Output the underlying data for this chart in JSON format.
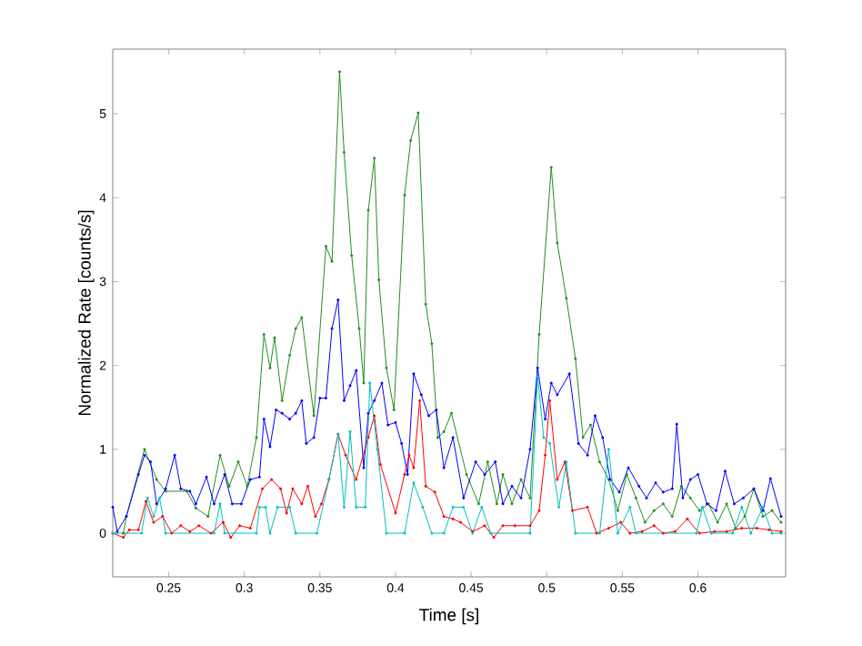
{
  "chart_data": {
    "type": "line",
    "xlabel": "Time [s]",
    "ylabel": "Normalized Rate [counts/s]",
    "xlim": [
      0.213,
      0.658
    ],
    "ylim": [
      -0.52,
      5.77
    ],
    "xticks": [
      0.25,
      0.3,
      0.35,
      0.4,
      0.45,
      0.5,
      0.55,
      0.6
    ],
    "yticks": [
      0,
      1,
      2,
      3,
      4,
      5
    ],
    "grid": false,
    "marker": "circle",
    "line_style": "solid",
    "series": [
      {
        "color": "#1f8f1f",
        "x": [
          0.22,
          0.222,
          0.234,
          0.242,
          0.248,
          0.262,
          0.268,
          0.276,
          0.284,
          0.29,
          0.296,
          0.302,
          0.308,
          0.313,
          0.317,
          0.32,
          0.325,
          0.33,
          0.334,
          0.338,
          0.346,
          0.354,
          0.358,
          0.363,
          0.366,
          0.371,
          0.376,
          0.379,
          0.382,
          0.386,
          0.389,
          0.394,
          0.399,
          0.406,
          0.41,
          0.415,
          0.42,
          0.424,
          0.428,
          0.432,
          0.437,
          0.447,
          0.455,
          0.461,
          0.467,
          0.471,
          0.477,
          0.483,
          0.489,
          0.495,
          0.503,
          0.507,
          0.513,
          0.519,
          0.524,
          0.529,
          0.535,
          0.541,
          0.547,
          0.553,
          0.559,
          0.565,
          0.571,
          0.577,
          0.583,
          0.589,
          0.595,
          0.601,
          0.607,
          0.613,
          0.619,
          0.625,
          0.631,
          0.637,
          0.643,
          0.649,
          0.655
        ],
        "values": [
          0,
          0.2,
          1.0,
          0.64,
          0.5,
          0.5,
          0.3,
          0.2,
          0.93,
          0.56,
          0.85,
          0.56,
          1.14,
          2.37,
          1.97,
          2.33,
          1.58,
          2.12,
          2.44,
          2.57,
          1.4,
          3.42,
          3.24,
          5.5,
          4.54,
          3.31,
          2.44,
          1.79,
          3.85,
          4.47,
          3.02,
          1.97,
          1.47,
          4.03,
          4.68,
          5.01,
          2.73,
          2.26,
          1.14,
          1.21,
          1.43,
          0.7,
          0.35,
          0.85,
          0.35,
          0.7,
          0.35,
          0.64,
          0.42,
          2.37,
          4.36,
          3.46,
          2.8,
          2.08,
          1.14,
          1.29,
          0.85,
          0.64,
          0.27,
          0.7,
          0.42,
          0.13,
          0.27,
          0.35,
          0.2,
          0.56,
          0.42,
          0.27,
          0.35,
          0.13,
          0.35,
          0.06,
          0.2,
          0.53,
          0.2,
          0.27,
          0.13
        ]
      },
      {
        "color": "#0000ff",
        "x": [
          0.213,
          0.216,
          0.222,
          0.23,
          0.234,
          0.238,
          0.242,
          0.248,
          0.254,
          0.258,
          0.264,
          0.268,
          0.275,
          0.28,
          0.287,
          0.292,
          0.298,
          0.304,
          0.31,
          0.313,
          0.317,
          0.321,
          0.325,
          0.33,
          0.334,
          0.338,
          0.341,
          0.346,
          0.35,
          0.354,
          0.358,
          0.362,
          0.366,
          0.37,
          0.374,
          0.379,
          0.382,
          0.386,
          0.391,
          0.395,
          0.4,
          0.404,
          0.408,
          0.412,
          0.417,
          0.422,
          0.427,
          0.432,
          0.438,
          0.445,
          0.453,
          0.459,
          0.466,
          0.471,
          0.477,
          0.483,
          0.489,
          0.494,
          0.499,
          0.503,
          0.507,
          0.515,
          0.521,
          0.527,
          0.532,
          0.537,
          0.542,
          0.548,
          0.554,
          0.561,
          0.566,
          0.572,
          0.577,
          0.583,
          0.586,
          0.59,
          0.595,
          0.6,
          0.606,
          0.612,
          0.618,
          0.624,
          0.63,
          0.637,
          0.643,
          0.648,
          0.655
        ],
        "values": [
          0.31,
          0.02,
          0.2,
          0.7,
          0.93,
          0.85,
          0.35,
          0.53,
          0.93,
          0.53,
          0.5,
          0.35,
          0.67,
          0.35,
          0.7,
          0.35,
          0.35,
          0.64,
          0.67,
          1.36,
          1.03,
          1.47,
          1.43,
          1.36,
          1.43,
          1.58,
          1.07,
          1.14,
          1.61,
          1.61,
          2.44,
          2.78,
          1.58,
          1.76,
          1.94,
          0.78,
          1.43,
          1.58,
          1.79,
          1.29,
          1.32,
          1.07,
          0.7,
          1.9,
          1.65,
          1.4,
          1.47,
          0.78,
          1.14,
          0.42,
          0.85,
          0.7,
          0.85,
          0.35,
          0.56,
          0.42,
          1.0,
          1.97,
          1.36,
          1.79,
          1.65,
          1.9,
          1.07,
          0.93,
          1.4,
          1.14,
          0.64,
          0.49,
          0.78,
          0.56,
          0.42,
          0.6,
          0.49,
          0.53,
          1.3,
          0.42,
          0.64,
          0.7,
          0.35,
          0.27,
          0.74,
          0.35,
          0.42,
          0.53,
          0.27,
          0.65,
          0.2
        ]
      },
      {
        "color": "#ff0000",
        "x": [
          0.213,
          0.22,
          0.224,
          0.23,
          0.235,
          0.24,
          0.246,
          0.252,
          0.258,
          0.264,
          0.27,
          0.278,
          0.286,
          0.291,
          0.297,
          0.304,
          0.312,
          0.318,
          0.324,
          0.328,
          0.332,
          0.338,
          0.342,
          0.347,
          0.351,
          0.356,
          0.362,
          0.367,
          0.374,
          0.382,
          0.386,
          0.39,
          0.4,
          0.406,
          0.409,
          0.412,
          0.416,
          0.42,
          0.426,
          0.432,
          0.438,
          0.443,
          0.451,
          0.459,
          0.465,
          0.471,
          0.479,
          0.489,
          0.495,
          0.499,
          0.502,
          0.507,
          0.512,
          0.517,
          0.527,
          0.533,
          0.541,
          0.549,
          0.555,
          0.563,
          0.571,
          0.577,
          0.585,
          0.593,
          0.601,
          0.611,
          0.619,
          0.629,
          0.639,
          0.647,
          0.655
        ],
        "values": [
          0,
          -0.05,
          0.04,
          0.04,
          0.38,
          0.13,
          0.2,
          0,
          0.09,
          0.02,
          0.09,
          0,
          0.13,
          -0.05,
          0.09,
          0.06,
          0.53,
          0.64,
          0.53,
          0.24,
          0.53,
          0.35,
          0.56,
          0.2,
          0.35,
          0.64,
          1.18,
          0.93,
          0.64,
          1.14,
          1.4,
          0.82,
          0.24,
          0.7,
          0.93,
          0.78,
          1.58,
          0.56,
          0.49,
          0.2,
          0.17,
          0.13,
          0.02,
          0.09,
          -0.05,
          0.09,
          0.09,
          0.09,
          0.27,
          0.93,
          1.58,
          0.64,
          0.85,
          0.27,
          0.31,
          0,
          0.06,
          0.13,
          0,
          0.02,
          0.09,
          0,
          0.02,
          0.17,
          0,
          0.02,
          0.02,
          0.06,
          0.06,
          0.04,
          0.02
        ]
      },
      {
        "color": "#00c0c0",
        "x": [
          0.213,
          0.232,
          0.236,
          0.24,
          0.244,
          0.248,
          0.28,
          0.284,
          0.287,
          0.308,
          0.31,
          0.314,
          0.317,
          0.322,
          0.33,
          0.334,
          0.348,
          0.356,
          0.362,
          0.366,
          0.37,
          0.374,
          0.38,
          0.383,
          0.388,
          0.394,
          0.406,
          0.412,
          0.418,
          0.424,
          0.432,
          0.438,
          0.445,
          0.451,
          0.457,
          0.463,
          0.489,
          0.494,
          0.498,
          0.502,
          0.508,
          0.513,
          0.519,
          0.535,
          0.541,
          0.547,
          0.555,
          0.559,
          0.599,
          0.603,
          0.609,
          0.623,
          0.629,
          0.635,
          0.643,
          0.649,
          0.655
        ],
        "values": [
          0,
          0,
          0.42,
          0.2,
          0.42,
          0,
          0,
          0.35,
          0,
          0,
          0.31,
          0.31,
          0,
          0.31,
          0.31,
          0,
          0,
          0.64,
          1.18,
          0.31,
          1.21,
          0.31,
          0.31,
          1.79,
          1.0,
          0,
          0,
          0.6,
          0.31,
          0,
          0,
          0.31,
          0.31,
          0,
          0.31,
          0,
          0,
          1.87,
          1.14,
          1.07,
          0.31,
          0.85,
          0,
          0,
          1.0,
          0,
          0.31,
          0,
          0,
          0.31,
          0,
          0,
          0.31,
          0,
          0.31,
          0,
          0
        ]
      }
    ]
  }
}
